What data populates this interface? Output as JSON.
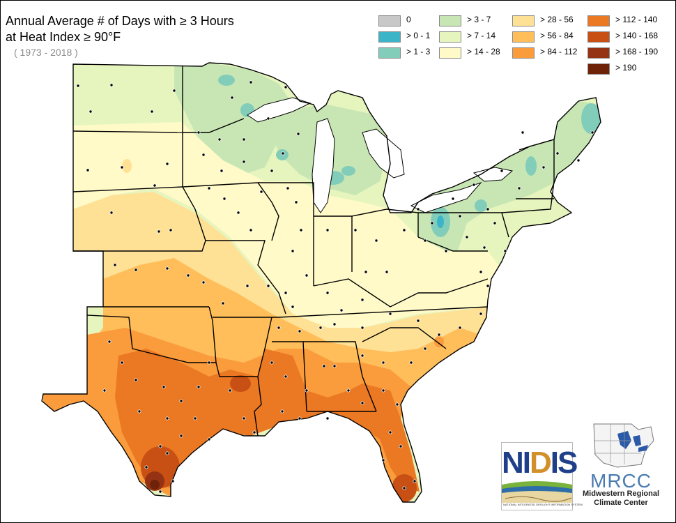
{
  "title_line1": "Annual Average # of Days with ≥ 3 Hours",
  "title_line2": "at Heat Index ≥ 90°F",
  "subtitle": "( 1973 - 2018 )",
  "legend": [
    {
      "label": "0",
      "color": "#c8c8c8"
    },
    {
      "label": "> 0 - 1",
      "color": "#3cb4c8"
    },
    {
      "label": "> 1 - 3",
      "color": "#82cdb9"
    },
    {
      "label": "> 3 - 7",
      "color": "#c8e6b4"
    },
    {
      "label": "> 7 - 14",
      "color": "#e6f5be"
    },
    {
      "label": "> 14 - 28",
      "color": "#fffac8"
    },
    {
      "label": "> 28 - 56",
      "color": "#ffe196"
    },
    {
      "label": "> 56 - 84",
      "color": "#ffbe5a"
    },
    {
      "label": "> 84 - 112",
      "color": "#fa9b3c"
    },
    {
      "label": "> 112 - 140",
      "color": "#eb7823"
    },
    {
      "label": "> 140 - 168",
      "color": "#c85014"
    },
    {
      "label": "> 168 - 190",
      "color": "#963214"
    },
    {
      "label": "> 190",
      "color": "#6e2308"
    }
  ],
  "logos": {
    "nidis": "NIDIS",
    "nidis_subtitle": "NATIONAL INTEGRATED DROUGHT INFORMATION SYSTEM",
    "mrcc": "MRCC",
    "mrcc_line1": "Midwestern Regional",
    "mrcc_line2": "Climate Center"
  }
}
